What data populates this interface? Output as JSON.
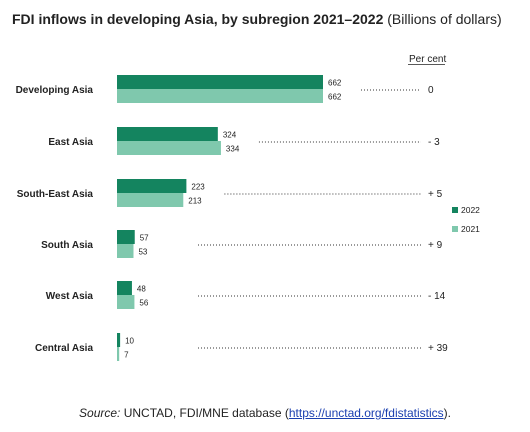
{
  "title_bold": "FDI inflows in developing Asia, by subregion 2021–2022",
  "title_rest": "(Billions of dollars)",
  "per_cent_header": "Per cent",
  "source": {
    "label": "Source:",
    "text": "UNCTAD, FDI/MNE database (",
    "link": "https://unctad.org/fdistatistics",
    "end": ")."
  },
  "colors": {
    "2022": "#14845f",
    "2021": "#7fc8ad",
    "dots": "#333333"
  },
  "chart_data": {
    "type": "bar",
    "orientation": "horizontal",
    "categories": [
      "Developing Asia",
      "East Asia",
      "South-East Asia",
      "South Asia",
      "West Asia",
      "Central Asia"
    ],
    "series": [
      {
        "name": "2022",
        "values": [
          662,
          324,
          223,
          57,
          48,
          10
        ]
      },
      {
        "name": "2021",
        "values": [
          662,
          334,
          213,
          53,
          56,
          7
        ]
      }
    ],
    "percent_change": [
      "0",
      "- 3",
      "+ 5",
      "+ 9",
      "- 14",
      "+ 39"
    ],
    "legend_position": "right",
    "grid": false,
    "xlim": [
      0,
      700
    ]
  }
}
